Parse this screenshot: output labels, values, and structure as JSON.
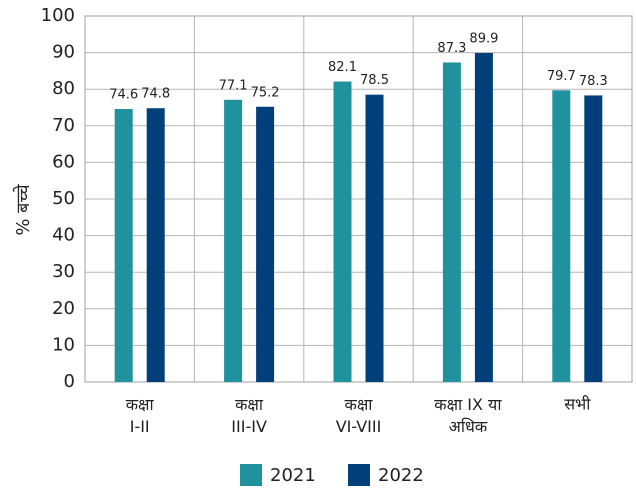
{
  "chart_data": {
    "type": "bar",
    "y_label": "% बच्चे",
    "categories": [
      "कक्षा\nI-II",
      "कक्षा\nIII-IV",
      "कक्षा\nVI-VIII",
      "कक्षा IX या\nअधिक",
      "सभी"
    ],
    "series": [
      {
        "name": "2021",
        "color": "#1f929e",
        "values": [
          74.6,
          77.1,
          82.1,
          87.3,
          79.7
        ]
      },
      {
        "name": "2022",
        "color": "#003f7a",
        "values": [
          74.8,
          75.2,
          78.5,
          89.9,
          78.3
        ]
      }
    ],
    "ylim": [
      0,
      100
    ],
    "yticks": [
      0,
      10,
      20,
      30,
      40,
      50,
      60,
      70,
      80,
      90,
      100
    ],
    "grid": true
  }
}
